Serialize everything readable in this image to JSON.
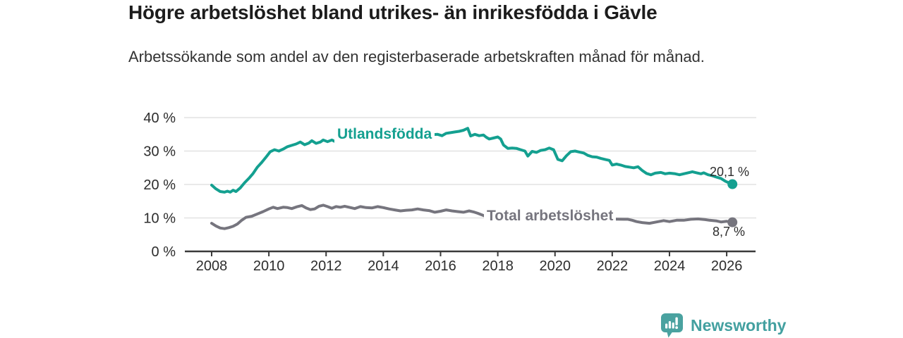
{
  "chart_data": {
    "type": "line",
    "title": "Högre arbetslöshet bland utrikes- än inrikesfödda i Gävle",
    "subtitle": "Arbetssökande som andel av den registerbaserade arbetskraften månad för månad.",
    "unit": "%",
    "grid": "horizontal",
    "legend_position": "inline-labels",
    "ylim": [
      0,
      40
    ],
    "xlim": [
      2007.1,
      2027.0
    ],
    "y_ticks": [
      {
        "value": 0,
        "label": "0 %"
      },
      {
        "value": 10,
        "label": "10 %"
      },
      {
        "value": 20,
        "label": "20 %"
      },
      {
        "value": 30,
        "label": "30 %"
      },
      {
        "value": 40,
        "label": "40 %"
      }
    ],
    "x_ticks": [
      {
        "year": 2008,
        "label": "2008"
      },
      {
        "year": 2010,
        "label": "2010"
      },
      {
        "year": 2012,
        "label": "2012"
      },
      {
        "year": 2014,
        "label": "2014"
      },
      {
        "year": 2016,
        "label": "2016"
      },
      {
        "year": 2018,
        "label": "2018"
      },
      {
        "year": 2020,
        "label": "2020"
      },
      {
        "year": 2022,
        "label": "2022"
      },
      {
        "year": 2024,
        "label": "2024"
      },
      {
        "year": 2026,
        "label": "2026"
      }
    ],
    "series": [
      {
        "name": "Utlandsfödda",
        "inline_label": "Utlandsfödda",
        "color": "#14a090",
        "end_value": 20.1,
        "end_label": "20,1 %",
        "points": [
          [
            2008.0,
            19.8
          ],
          [
            2008.15,
            18.7
          ],
          [
            2008.3,
            17.9
          ],
          [
            2008.45,
            17.7
          ],
          [
            2008.55,
            18.0
          ],
          [
            2008.65,
            17.7
          ],
          [
            2008.75,
            18.3
          ],
          [
            2008.85,
            17.9
          ],
          [
            2009.0,
            19.0
          ],
          [
            2009.15,
            20.5
          ],
          [
            2009.3,
            21.8
          ],
          [
            2009.45,
            23.3
          ],
          [
            2009.6,
            25.2
          ],
          [
            2009.75,
            26.6
          ],
          [
            2009.9,
            28.2
          ],
          [
            2010.05,
            29.8
          ],
          [
            2010.2,
            30.4
          ],
          [
            2010.35,
            30.0
          ],
          [
            2010.5,
            30.6
          ],
          [
            2010.65,
            31.3
          ],
          [
            2010.8,
            31.7
          ],
          [
            2010.95,
            32.1
          ],
          [
            2011.1,
            32.7
          ],
          [
            2011.25,
            31.9
          ],
          [
            2011.4,
            32.4
          ],
          [
            2011.5,
            33.1
          ],
          [
            2011.65,
            32.3
          ],
          [
            2011.8,
            32.7
          ],
          [
            2011.9,
            33.3
          ],
          [
            2012.05,
            32.8
          ],
          [
            2012.2,
            33.3
          ],
          [
            2012.35,
            32.7
          ],
          [
            2012.5,
            33.0
          ],
          [
            2013.0,
            33.4
          ],
          [
            2013.5,
            33.7
          ],
          [
            2014.0,
            34.0
          ],
          [
            2014.5,
            34.3
          ],
          [
            2015.0,
            34.6
          ],
          [
            2015.5,
            34.8
          ],
          [
            2015.9,
            35.0
          ],
          [
            2016.05,
            34.6
          ],
          [
            2016.2,
            35.3
          ],
          [
            2016.35,
            35.5
          ],
          [
            2016.5,
            35.7
          ],
          [
            2016.65,
            35.9
          ],
          [
            2016.8,
            36.2
          ],
          [
            2016.95,
            36.8
          ],
          [
            2017.05,
            34.5
          ],
          [
            2017.2,
            35.0
          ],
          [
            2017.35,
            34.6
          ],
          [
            2017.5,
            34.8
          ],
          [
            2017.6,
            34.1
          ],
          [
            2017.7,
            33.6
          ],
          [
            2017.85,
            33.9
          ],
          [
            2018.0,
            34.2
          ],
          [
            2018.1,
            33.6
          ],
          [
            2018.2,
            31.8
          ],
          [
            2018.35,
            30.8
          ],
          [
            2018.5,
            30.9
          ],
          [
            2018.65,
            30.8
          ],
          [
            2018.8,
            30.4
          ],
          [
            2018.95,
            30.0
          ],
          [
            2019.05,
            28.5
          ],
          [
            2019.2,
            29.9
          ],
          [
            2019.35,
            29.6
          ],
          [
            2019.5,
            30.2
          ],
          [
            2019.65,
            30.4
          ],
          [
            2019.8,
            30.9
          ],
          [
            2019.95,
            30.4
          ],
          [
            2020.1,
            27.5
          ],
          [
            2020.25,
            27.1
          ],
          [
            2020.4,
            28.6
          ],
          [
            2020.55,
            29.8
          ],
          [
            2020.7,
            30.0
          ],
          [
            2020.85,
            29.7
          ],
          [
            2021.0,
            29.4
          ],
          [
            2021.15,
            28.7
          ],
          [
            2021.3,
            28.3
          ],
          [
            2021.45,
            28.2
          ],
          [
            2021.6,
            27.8
          ],
          [
            2021.75,
            27.5
          ],
          [
            2021.9,
            27.2
          ],
          [
            2022.0,
            25.8
          ],
          [
            2022.15,
            26.1
          ],
          [
            2022.3,
            25.8
          ],
          [
            2022.45,
            25.4
          ],
          [
            2022.6,
            25.2
          ],
          [
            2022.75,
            25.0
          ],
          [
            2022.9,
            25.3
          ],
          [
            2023.05,
            24.2
          ],
          [
            2023.2,
            23.3
          ],
          [
            2023.35,
            22.9
          ],
          [
            2023.5,
            23.4
          ],
          [
            2023.7,
            23.6
          ],
          [
            2023.85,
            23.2
          ],
          [
            2024.0,
            23.4
          ],
          [
            2024.2,
            23.2
          ],
          [
            2024.35,
            22.9
          ],
          [
            2024.5,
            23.2
          ],
          [
            2024.7,
            23.6
          ],
          [
            2024.8,
            23.8
          ],
          [
            2024.95,
            23.5
          ],
          [
            2025.1,
            23.2
          ],
          [
            2025.2,
            23.5
          ],
          [
            2025.35,
            22.9
          ],
          [
            2025.5,
            22.6
          ],
          [
            2025.65,
            22.2
          ],
          [
            2025.8,
            21.8
          ],
          [
            2025.95,
            21.0
          ],
          [
            2026.1,
            20.4
          ],
          [
            2026.2,
            20.1
          ]
        ]
      },
      {
        "name": "Total arbetslöshet",
        "inline_label": "Total arbetslöshet",
        "color": "#76757e",
        "end_value": 8.7,
        "end_label": "8,7 %",
        "points": [
          [
            2008.0,
            8.4
          ],
          [
            2008.15,
            7.6
          ],
          [
            2008.3,
            7.0
          ],
          [
            2008.45,
            6.8
          ],
          [
            2008.6,
            7.1
          ],
          [
            2008.75,
            7.5
          ],
          [
            2008.9,
            8.2
          ],
          [
            2009.05,
            9.3
          ],
          [
            2009.2,
            10.2
          ],
          [
            2009.4,
            10.5
          ],
          [
            2009.6,
            11.2
          ],
          [
            2009.8,
            11.9
          ],
          [
            2010.0,
            12.7
          ],
          [
            2010.15,
            13.2
          ],
          [
            2010.3,
            12.8
          ],
          [
            2010.5,
            13.2
          ],
          [
            2010.65,
            13.1
          ],
          [
            2010.8,
            12.8
          ],
          [
            2011.0,
            13.4
          ],
          [
            2011.15,
            13.7
          ],
          [
            2011.3,
            13.0
          ],
          [
            2011.45,
            12.5
          ],
          [
            2011.6,
            12.7
          ],
          [
            2011.75,
            13.5
          ],
          [
            2011.9,
            13.8
          ],
          [
            2012.05,
            13.4
          ],
          [
            2012.2,
            12.9
          ],
          [
            2012.35,
            13.4
          ],
          [
            2012.5,
            13.2
          ],
          [
            2012.65,
            13.5
          ],
          [
            2012.8,
            13.2
          ],
          [
            2013.0,
            12.8
          ],
          [
            2013.2,
            13.4
          ],
          [
            2013.4,
            13.1
          ],
          [
            2013.6,
            13.0
          ],
          [
            2013.8,
            13.4
          ],
          [
            2014.0,
            13.1
          ],
          [
            2014.2,
            12.7
          ],
          [
            2014.4,
            12.4
          ],
          [
            2014.6,
            12.1
          ],
          [
            2014.8,
            12.3
          ],
          [
            2015.0,
            12.4
          ],
          [
            2015.2,
            12.7
          ],
          [
            2015.4,
            12.4
          ],
          [
            2015.6,
            12.2
          ],
          [
            2015.8,
            11.7
          ],
          [
            2016.0,
            12.0
          ],
          [
            2016.2,
            12.4
          ],
          [
            2016.4,
            12.1
          ],
          [
            2016.6,
            11.9
          ],
          [
            2016.8,
            11.7
          ],
          [
            2017.0,
            12.1
          ],
          [
            2017.15,
            11.8
          ],
          [
            2017.3,
            11.4
          ],
          [
            2017.45,
            10.9
          ],
          [
            2017.6,
            10.4
          ],
          [
            2018.5,
            10.2
          ],
          [
            2019.5,
            10.0
          ],
          [
            2020.5,
            9.9
          ],
          [
            2021.5,
            9.7
          ],
          [
            2022.4,
            9.6
          ],
          [
            2022.55,
            9.6
          ],
          [
            2022.7,
            9.3
          ],
          [
            2022.85,
            8.9
          ],
          [
            2023.05,
            8.6
          ],
          [
            2023.3,
            8.4
          ],
          [
            2023.55,
            8.8
          ],
          [
            2023.8,
            9.2
          ],
          [
            2024.0,
            8.9
          ],
          [
            2024.25,
            9.3
          ],
          [
            2024.5,
            9.3
          ],
          [
            2024.75,
            9.6
          ],
          [
            2025.0,
            9.7
          ],
          [
            2025.25,
            9.5
          ],
          [
            2025.4,
            9.3
          ],
          [
            2025.65,
            9.1
          ],
          [
            2025.8,
            8.8
          ],
          [
            2026.0,
            9.0
          ],
          [
            2026.2,
            8.7
          ]
        ]
      }
    ]
  },
  "footer": {
    "brand": "Newsworthy",
    "brand_color": "#43a0a0",
    "logo_icon": "bar-chart-speech-bubble-icon"
  }
}
